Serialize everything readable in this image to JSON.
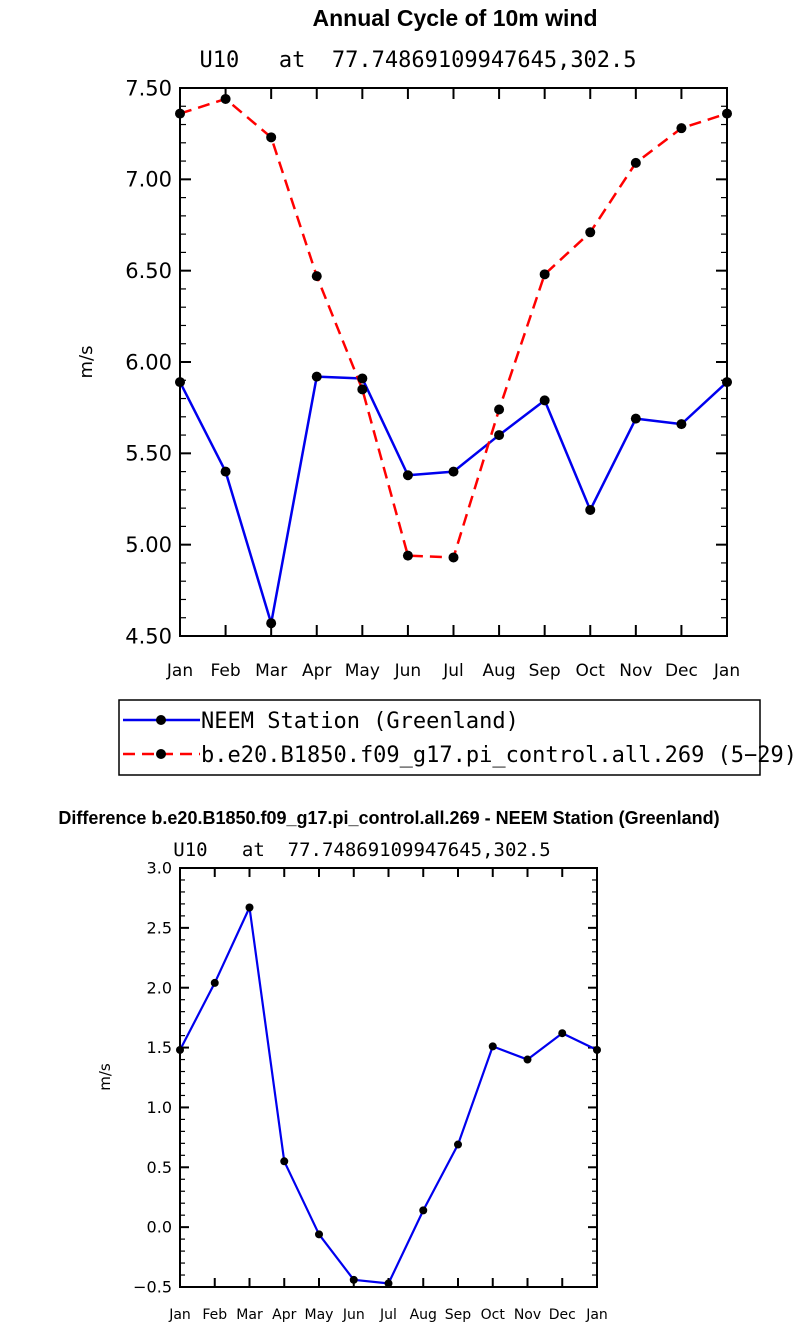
{
  "chart_data": [
    {
      "type": "line",
      "title": "Annual Cycle of 10m wind",
      "subtitle": "U10   at  77.74869109947645,302.5",
      "xlabel": "",
      "ylabel": "m/s",
      "categories": [
        "Jan",
        "Feb",
        "Mar",
        "Apr",
        "May",
        "Jun",
        "Jul",
        "Aug",
        "Sep",
        "Oct",
        "Nov",
        "Dec",
        "Jan"
      ],
      "yticks": [
        "4.50",
        "5.00",
        "5.50",
        "6.00",
        "6.50",
        "7.00",
        "7.50"
      ],
      "ylim": [
        4.5,
        7.5
      ],
      "grid": false,
      "legend_position": "below",
      "series": [
        {
          "name": "NEEM Station (Greenland)",
          "color": "#0000ee",
          "dash": "solid",
          "values": [
            5.89,
            5.4,
            4.57,
            5.92,
            5.91,
            5.38,
            5.4,
            5.6,
            5.79,
            5.19,
            5.69,
            5.66,
            5.89
          ]
        },
        {
          "name": "b.e20.B1850.f09_g17.pi_control.all.269 (5−29)",
          "color": "#ff0000",
          "dash": "dashed",
          "values": [
            7.36,
            7.44,
            7.23,
            6.47,
            5.85,
            4.94,
            4.93,
            5.74,
            6.48,
            6.71,
            7.09,
            7.28,
            7.36
          ]
        }
      ]
    },
    {
      "type": "line",
      "title": "Difference b.e20.B1850.f09_g17.pi_control.all.269 - NEEM Station (Greenland)",
      "subtitle": "U10   at  77.74869109947645,302.5",
      "xlabel": "",
      "ylabel": "m/s",
      "categories": [
        "Jan",
        "Feb",
        "Mar",
        "Apr",
        "May",
        "Jun",
        "Jul",
        "Aug",
        "Sep",
        "Oct",
        "Nov",
        "Dec",
        "Jan"
      ],
      "yticks": [
        "−0.5",
        "0.0",
        "0.5",
        "1.0",
        "1.5",
        "2.0",
        "2.5",
        "3.0"
      ],
      "ylim": [
        -0.5,
        3.0
      ],
      "grid": false,
      "series": [
        {
          "color": "#0000ee",
          "dash": "solid",
          "values": [
            1.48,
            2.04,
            2.67,
            0.55,
            -0.06,
            -0.44,
            -0.47,
            0.14,
            0.69,
            1.51,
            1.4,
            1.62,
            1.48
          ]
        }
      ]
    }
  ]
}
